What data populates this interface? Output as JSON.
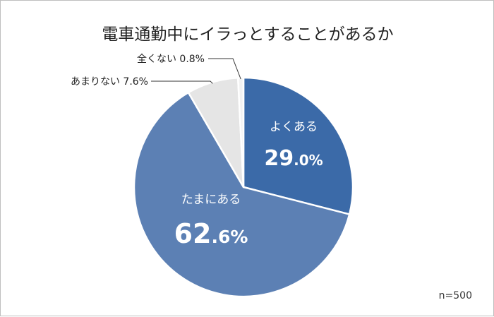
{
  "chart_data": {
    "type": "pie",
    "title": "電車通勤中にイラっとすることがあるか",
    "categories": [
      "よくある",
      "たまにある",
      "あまりない",
      "全くない"
    ],
    "values": [
      29.0,
      62.6,
      7.6,
      0.8
    ],
    "value_labels": [
      {
        "int": "29",
        "dec": ".0%"
      },
      {
        "int": "62",
        "dec": ".6%"
      },
      "7.6%",
      "0.8%"
    ],
    "colors": [
      "#3b6aa8",
      "#5c80b4",
      "#e5e5e5",
      "#f2f2f2"
    ],
    "start": "12 o'clock",
    "direction": "clockwise",
    "note": "n=500"
  }
}
